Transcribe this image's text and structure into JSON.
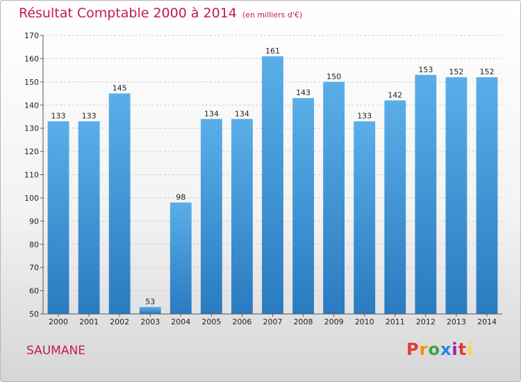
{
  "title": "Résultat Comptable 2000 à 2014",
  "subtitle": "(en milliers d'€)",
  "place": "SAUMANE",
  "brand": {
    "text": "Proxiti",
    "letters": [
      {
        "ch": "P",
        "color": "#e53935"
      },
      {
        "ch": "r",
        "color": "#fb8c00"
      },
      {
        "ch": "o",
        "color": "#43a047"
      },
      {
        "ch": "x",
        "color": "#1e88e5"
      },
      {
        "ch": "i",
        "color": "#8e24aa"
      },
      {
        "ch": "t",
        "color": "#e53935"
      },
      {
        "ch": "i",
        "color": "#fdd835"
      }
    ]
  },
  "colors": {
    "title": "#c2185b",
    "bar_top": "#5aaee8",
    "bar_bottom": "#2a7bc0",
    "grid": "#cccccc"
  },
  "chart_data": {
    "type": "bar",
    "categories": [
      "2000",
      "2001",
      "2002",
      "2003",
      "2004",
      "2005",
      "2006",
      "2007",
      "2008",
      "2009",
      "2010",
      "2011",
      "2012",
      "2013",
      "2014"
    ],
    "values": [
      133,
      133,
      145,
      53,
      98,
      134,
      134,
      161,
      143,
      150,
      133,
      142,
      153,
      152,
      152
    ],
    "ylim": [
      50,
      170
    ],
    "yticks": [
      50,
      60,
      70,
      80,
      90,
      100,
      110,
      120,
      130,
      140,
      150,
      160,
      170
    ],
    "grid": true,
    "data_labels": true
  }
}
